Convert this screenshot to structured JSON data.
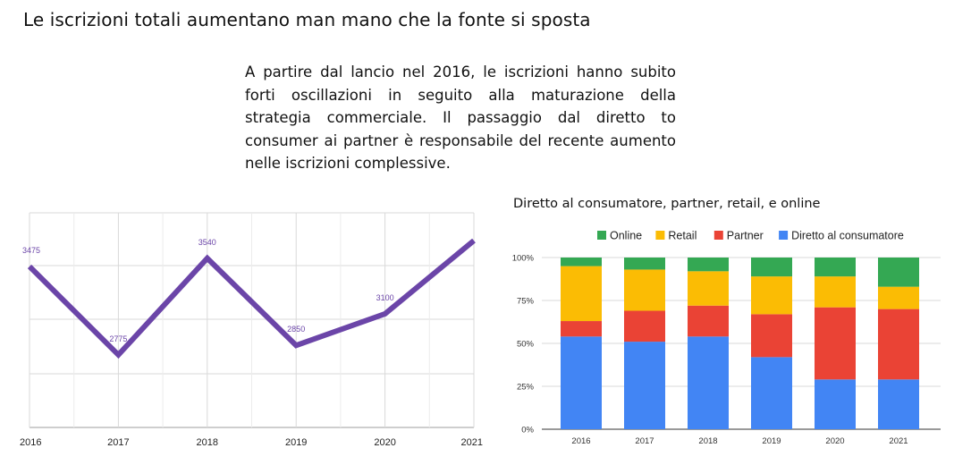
{
  "page": {
    "title": "Le iscrizioni totali aumentano man mano che la fonte si sposta",
    "description": "A partire dal lancio nel 2016, le iscrizioni hanno subito forti oscillazioni in seguito alla maturazione della strategia commerciale. Il passaggio dal diretto to consumer ai partner è responsabile del recente aumento nelle iscrizioni complessive."
  },
  "chart_data": [
    {
      "type": "line",
      "title": "",
      "categories": [
        "2016",
        "2017",
        "2018",
        "2019",
        "2020",
        "2021"
      ],
      "series": [
        {
          "values": [
            3475,
            2775,
            3540,
            2850,
            3100,
            3680
          ],
          "color": "#6b45a8"
        }
      ],
      "data_labels": [
        "3475",
        "2775",
        "3540",
        "2850",
        "3100",
        ""
      ],
      "grid": true
    },
    {
      "type": "bar",
      "stacked": "percent",
      "title": "Diretto al consumatore, partner, retail, e online",
      "categories": [
        "2016",
        "2017",
        "2018",
        "2019",
        "2020",
        "2021"
      ],
      "y_ticks": [
        "0%",
        "25%",
        "50%",
        "75%",
        "100%"
      ],
      "ylim": [
        0,
        100
      ],
      "legend_position": "top",
      "series": [
        {
          "name": "Diretto al consumatore",
          "color": "#4285f4",
          "values": [
            54,
            51,
            54,
            42,
            29,
            29
          ]
        },
        {
          "name": "Partner",
          "color": "#ea4335",
          "values": [
            9,
            18,
            18,
            25,
            42,
            41
          ]
        },
        {
          "name": "Retail",
          "color": "#fbbc04",
          "values": [
            32,
            24,
            20,
            22,
            18,
            13
          ]
        },
        {
          "name": "Online",
          "color": "#34a853",
          "values": [
            5,
            7,
            8,
            11,
            11,
            17
          ]
        }
      ],
      "legend_order": [
        "Online",
        "Retail",
        "Partner",
        "Diretto al consumatore"
      ]
    }
  ]
}
